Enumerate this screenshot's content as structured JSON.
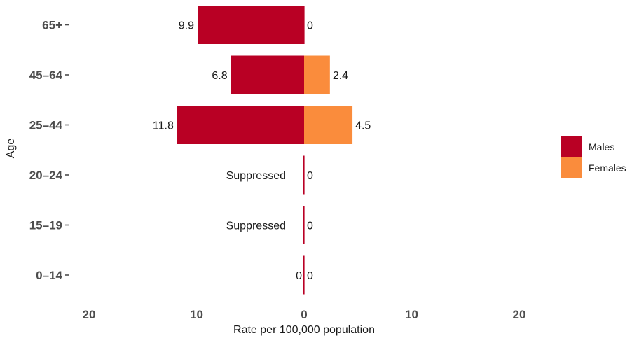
{
  "chart_data": {
    "type": "bar",
    "orientation": "horizontal-diverging",
    "categories": [
      "65+",
      "45-64",
      "25-44",
      "20-24",
      "15-19",
      "0-14"
    ],
    "series": [
      {
        "name": "Males",
        "color": "#b90024",
        "values": [
          9.9,
          6.8,
          11.8,
          0,
          0,
          0
        ],
        "labels": [
          "9.9",
          "6.8",
          "11.8",
          "Suppressed",
          "Suppressed",
          "0"
        ]
      },
      {
        "name": "Females",
        "color": "#fa8c3c",
        "values": [
          0,
          2.4,
          4.5,
          0,
          0,
          0
        ],
        "labels": [
          "0",
          "2.4",
          "4.5",
          "0",
          "0",
          "0"
        ]
      }
    ],
    "xlabel": "Rate per 100,000 population",
    "ylabel": "Age",
    "xlim": [
      -20,
      20
    ],
    "xticks": [
      -20,
      -10,
      0,
      10,
      20
    ],
    "xtick_labels": [
      "20",
      "10",
      "0",
      "10",
      "20"
    ],
    "grid": false,
    "legend_position": "right"
  }
}
